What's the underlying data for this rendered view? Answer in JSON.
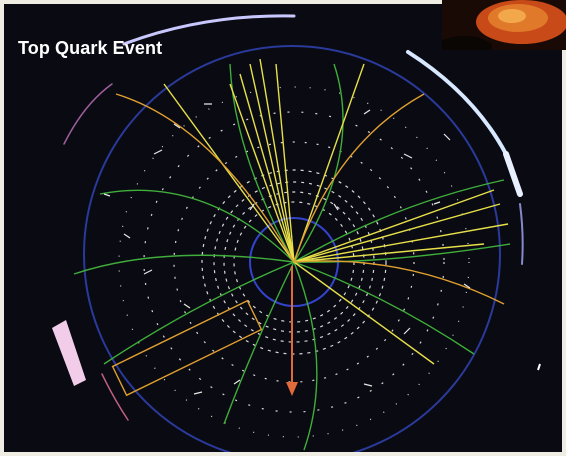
{
  "title": "Top Quark Event",
  "colors": {
    "background": "#0a0a12",
    "frame": "#efece3",
    "outer_ring": "#2a3a9a",
    "jet_tracks": "#e6e04a",
    "green_tracks": "#3fae3a",
    "orange_tracks": "#e0a030",
    "hits": "#d8d8d8",
    "arrow": "#e06a3a",
    "calorimeter_block": "#f0c8e8"
  },
  "icons": [
    "collision-event-display",
    "missing-energy-arrow",
    "thumbnail-image"
  ]
}
